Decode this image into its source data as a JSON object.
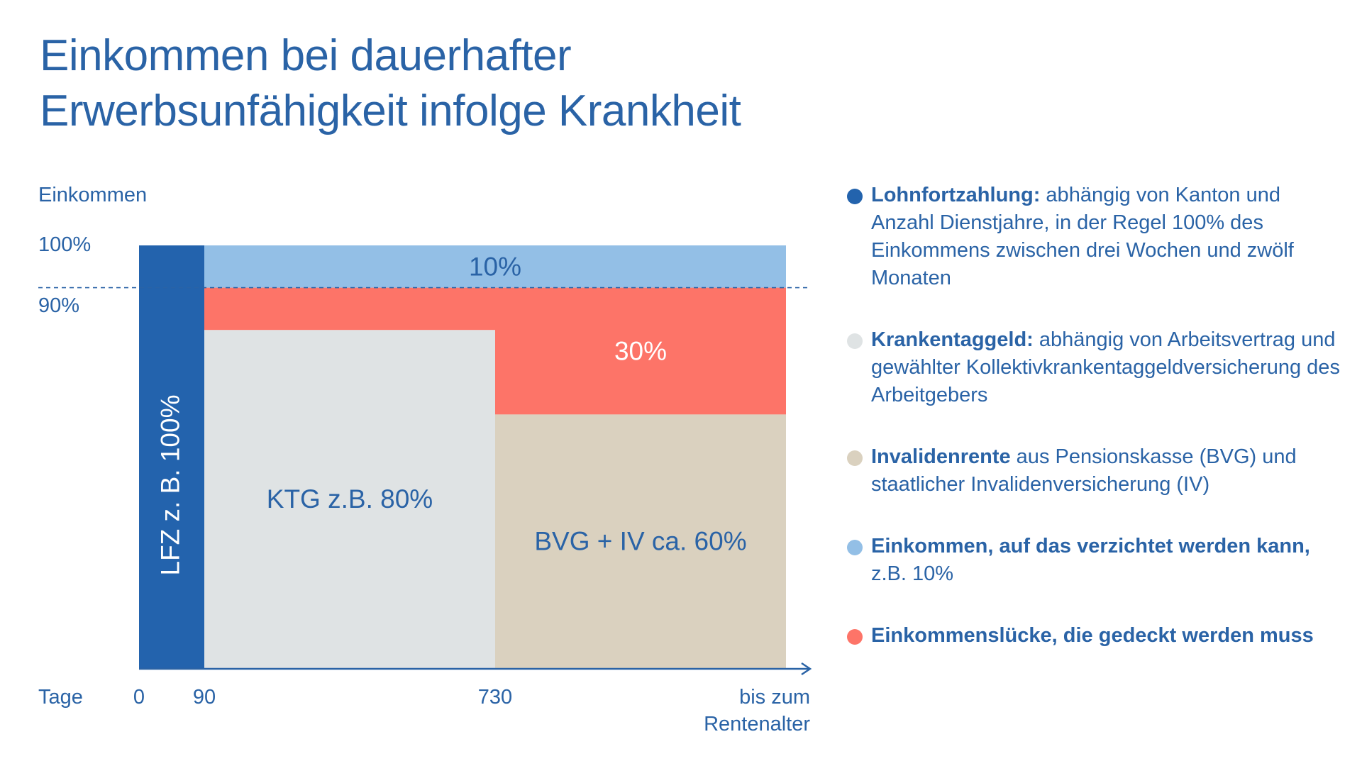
{
  "title": {
    "line1": "Einkommen bei dauerhafter",
    "line2": "Erwerbsunfähigkeit infolge Krankheit"
  },
  "chart_data": {
    "type": "bar",
    "ylabel": "Einkommen",
    "xlabel": "Tage",
    "yticks": [
      "100%",
      "90%"
    ],
    "ylim": [
      0,
      100
    ],
    "reference_line": 90,
    "x_ticks": [
      {
        "value": 0,
        "label": "0"
      },
      {
        "value": 90,
        "label": "90"
      },
      {
        "value": 730,
        "label": "730"
      },
      {
        "value": 1400,
        "label": "bis zum Rentenalter",
        "lines": [
          "bis zum",
          "Rentenalter"
        ]
      }
    ],
    "segments": [
      {
        "key": "lfz",
        "label": "LFZ z. B. 100%",
        "x_start": 0,
        "x_end": 90,
        "y_start": 0,
        "y_end": 100,
        "color": "#2363ad",
        "text_color": "#ffffff",
        "rotated": true
      },
      {
        "key": "verzicht",
        "label": "10%",
        "x_start": 90,
        "x_end": 1400,
        "y_start": 90,
        "y_end": 100,
        "color": "#93bfe6",
        "text_color": "#2a63a6"
      },
      {
        "key": "ktg",
        "label": "KTG z.B. 80%",
        "x_start": 90,
        "x_end": 730,
        "y_start": 0,
        "y_end": 80,
        "color": "#dfe3e4",
        "text_color": "#2a63a6"
      },
      {
        "key": "luecke_ktg",
        "label": "",
        "x_start": 90,
        "x_end": 730,
        "y_start": 80,
        "y_end": 90,
        "color": "#fd7468",
        "text_color": "#ffffff"
      },
      {
        "key": "luecke_bvg",
        "label": "30%",
        "x_start": 730,
        "x_end": 1400,
        "y_start": 60,
        "y_end": 90,
        "color": "#fd7468",
        "text_color": "#ffffff"
      },
      {
        "key": "bvg",
        "label": "BVG + IV ca. 60%",
        "x_start": 730,
        "x_end": 1400,
        "y_start": 0,
        "y_end": 60,
        "color": "#dad1bf",
        "text_color": "#2a63a6"
      }
    ]
  },
  "legend": [
    {
      "color": "#2363ad",
      "bold": "Lohnfortzahlung:",
      "text": " abhängig von Kanton und Anzahl Dienstjahre, in der Regel 100% des Einkommens zwischen drei Wochen und zwölf Monaten"
    },
    {
      "color": "#dfe3e4",
      "bold": "Krankentaggeld:",
      "text": " abhängig von Arbeitsvertrag und gewählter Kollektivkrankentaggeldversicherung des Arbeitgebers"
    },
    {
      "color": "#dad1bf",
      "bold": "Invalidenrente",
      "text": " aus Pensionskasse (BVG) und staatlicher Invalidenversicherung (IV)"
    },
    {
      "color": "#93bfe6",
      "bold": "Einkommen, auf das verzichtet werden kann,",
      "text": " z.B. 10%"
    },
    {
      "color": "#fd7468",
      "bold": "Einkommenslücke, die gedeckt werden muss",
      "text": ""
    }
  ]
}
